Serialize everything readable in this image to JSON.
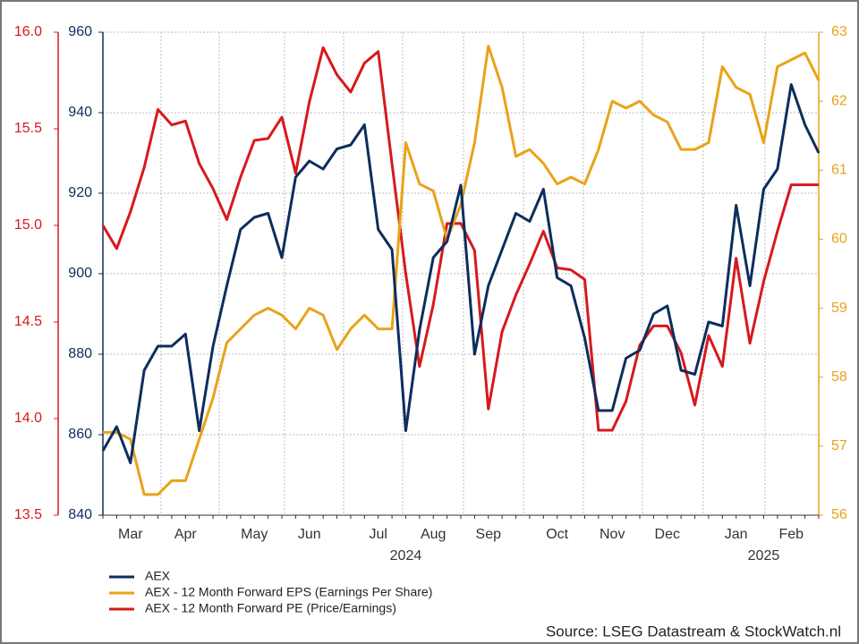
{
  "chart_data": {
    "type": "line",
    "categories": [
      null,
      null,
      "Mar",
      null,
      null,
      null,
      "Apr",
      null,
      null,
      null,
      null,
      "May",
      null,
      null,
      null,
      "Jun",
      null,
      null,
      null,
      null,
      "Jul",
      null,
      null,
      null,
      "Aug",
      null,
      null,
      null,
      "Sep",
      null,
      null,
      null,
      null,
      "Oct",
      null,
      null,
      null,
      "Nov",
      null,
      null,
      null,
      "Dec",
      null,
      null,
      null,
      null,
      "Jan",
      null,
      null,
      null,
      "Feb",
      null,
      null
    ],
    "years": [
      null,
      null,
      null,
      null,
      null,
      null,
      null,
      null,
      null,
      null,
      null,
      null,
      null,
      null,
      null,
      null,
      null,
      null,
      null,
      null,
      null,
      null,
      "2024",
      null,
      null,
      null,
      null,
      null,
      null,
      null,
      null,
      null,
      null,
      null,
      null,
      null,
      null,
      null,
      null,
      null,
      null,
      null,
      null,
      null,
      null,
      null,
      null,
      null,
      "2025",
      null,
      null,
      null,
      null
    ],
    "series": [
      {
        "name": "AEX",
        "color": "#0d2d5e",
        "axis": "y",
        "values": [
          856,
          862,
          853,
          876,
          882,
          882,
          885,
          861,
          882,
          897,
          911,
          914,
          915,
          904,
          924,
          928,
          926,
          931,
          932,
          937,
          911,
          906,
          861,
          886,
          904,
          908,
          922,
          880,
          897,
          906,
          915,
          913,
          921,
          899,
          897,
          884,
          866,
          866,
          879,
          881,
          890,
          892,
          876,
          875,
          888,
          887,
          917,
          897,
          921,
          926,
          947,
          937,
          930
        ]
      },
      {
        "name": "AEX - 12 Month Forward EPS (Earnings Per Share)",
        "color": "#e8a317",
        "axis": "y2",
        "values": [
          57.2,
          57.2,
          57.1,
          56.3,
          56.3,
          56.5,
          56.5,
          57.1,
          57.7,
          58.5,
          58.7,
          58.9,
          59.0,
          58.9,
          58.7,
          59.0,
          58.9,
          58.4,
          58.7,
          58.9,
          58.7,
          58.7,
          61.4,
          60.8,
          60.7,
          60.0,
          60.5,
          61.4,
          62.8,
          62.2,
          61.2,
          61.3,
          61.1,
          60.8,
          60.9,
          60.8,
          61.3,
          62.0,
          61.9,
          62.0,
          61.8,
          61.7,
          61.3,
          61.3,
          61.4,
          62.5,
          62.2,
          62.1,
          61.4,
          62.5,
          62.6,
          62.7,
          62.3
        ]
      },
      {
        "name": "AEX - 12 Month Forward PE (Price/Earnings)",
        "color": "#d7191c",
        "axis": "y3",
        "values": [
          15.0,
          14.88,
          15.07,
          15.3,
          15.6,
          15.52,
          15.54,
          15.32,
          15.19,
          15.03,
          15.25,
          15.44,
          15.45,
          15.56,
          15.27,
          15.64,
          15.92,
          15.78,
          15.69,
          15.84,
          15.9,
          15.32,
          14.75,
          14.27,
          14.59,
          15.01,
          15.01,
          14.87,
          14.05,
          14.45,
          14.64,
          14.8,
          14.97,
          14.78,
          14.77,
          14.72,
          13.94,
          13.94,
          14.09,
          14.38,
          14.48,
          14.48,
          14.34,
          14.07,
          14.43,
          14.27,
          14.83,
          14.39,
          14.71,
          14.97,
          15.21,
          15.21,
          15.21
        ]
      }
    ],
    "ylim": [
      840,
      960
    ],
    "yticks": [
      840,
      860,
      880,
      900,
      920,
      940,
      960
    ],
    "y2lim": [
      56,
      63
    ],
    "y2ticks": [
      56,
      57,
      58,
      59,
      60,
      61,
      62,
      63
    ],
    "y3lim": [
      13.5,
      16.0
    ],
    "y3ticks": [
      13.5,
      {
        "value": 14.0,
        "label": "14.0"
      },
      14.5,
      {
        "value": 15.0,
        "label": "15.0"
      },
      15.5,
      {
        "value": 16.0,
        "label": "16.0"
      }
    ],
    "grid": true,
    "source": "Source: LSEG Datastream & StockWatch.nl"
  }
}
